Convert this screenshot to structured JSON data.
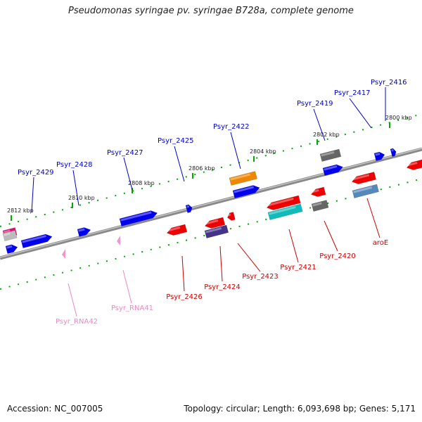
{
  "header": {
    "title": "Pseudomonas syringae pv. syringae B728a, complete genome"
  },
  "footer": {
    "accession": "Accession: NC_007005",
    "summary": "Topology: circular; Length: 6,093,698 bp; Genes: 5,171"
  },
  "ticks": [
    "2800 kbp",
    "2802 kbp",
    "2804 kbp",
    "2806 kbp",
    "2808 kbp",
    "2810 kbp",
    "2812 kbp"
  ],
  "genes": [
    {
      "name": "Psyr_2416",
      "color": "#0000cc"
    },
    {
      "name": "Psyr_2417",
      "color": "#0000cc"
    },
    {
      "name": "Psyr_2419",
      "color": "#0000cc"
    },
    {
      "name": "Psyr_2422",
      "color": "#0000cc"
    },
    {
      "name": "Psyr_2425",
      "color": "#0000cc"
    },
    {
      "name": "Psyr_2427",
      "color": "#0000cc"
    },
    {
      "name": "Psyr_2428",
      "color": "#0000cc"
    },
    {
      "name": "Psyr_2429",
      "color": "#0000cc"
    },
    {
      "name": "aroE",
      "color": "#cc0000"
    },
    {
      "name": "Psyr_2420",
      "color": "#cc0000"
    },
    {
      "name": "Psyr_2421",
      "color": "#cc0000"
    },
    {
      "name": "Psyr_2423",
      "color": "#cc0000"
    },
    {
      "name": "Psyr_2424",
      "color": "#cc0000"
    },
    {
      "name": "Psyr_2426",
      "color": "#cc0000"
    },
    {
      "name": "Psyr_RNA41",
      "color": "#e88ac4"
    },
    {
      "name": "Psyr_RNA42",
      "color": "#e88ac4"
    }
  ]
}
